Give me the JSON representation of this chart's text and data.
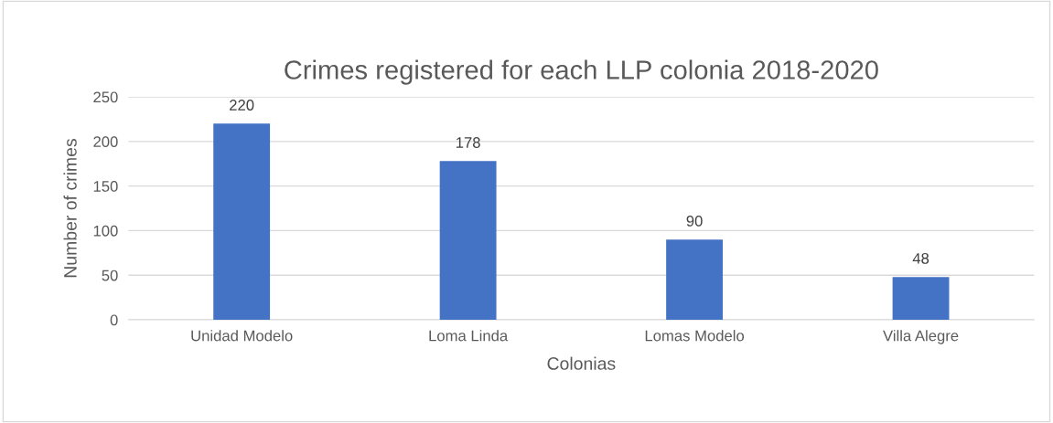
{
  "chart_data": {
    "type": "bar",
    "title": "Crimes registered for each LLP colonia 2018-2020",
    "xlabel": "Colonias",
    "ylabel": "Number of crimes",
    "categories": [
      "Unidad Modelo",
      "Loma Linda",
      "Lomas Modelo",
      "Villa Alegre"
    ],
    "values": [
      220,
      178,
      90,
      48
    ],
    "color": "#4472c4",
    "ylim": [
      0,
      250
    ],
    "yticks": [
      0,
      50,
      100,
      150,
      200,
      250
    ],
    "grid": "y",
    "data_labels": true,
    "legend": false
  }
}
